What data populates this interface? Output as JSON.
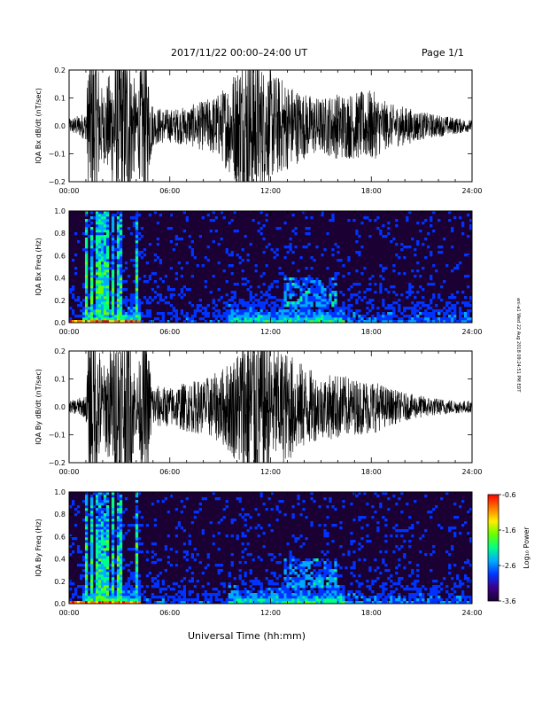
{
  "header": {
    "title": "2017/11/22  00:00–24:00 UT",
    "page": "Page 1/1"
  },
  "footer": {
    "xlabel": "Universal Time (hh:mm)"
  },
  "side_stamp": "ani-a1 Wed 22 Aug 2018 09:24:51 PM EDT",
  "chart_data": [
    {
      "type": "line",
      "ylabel": "IQA Bx dB/dt (nT/sec)",
      "x_ticks": [
        "00:00",
        "06:00",
        "12:00",
        "18:00",
        "24:00"
      ],
      "xlim": [
        0,
        24
      ],
      "ylim": [
        -0.2,
        0.2
      ],
      "y_ticks": [
        "0.2",
        "0.1",
        "0.0",
        "−0.1",
        "−0.2"
      ],
      "y_tick_values": [
        0.2,
        0.1,
        0.0,
        -0.1,
        -0.2
      ],
      "series": [
        {
          "hours": [
            0,
            1,
            1.2,
            1.6,
            2,
            3,
            3.6,
            4,
            4.5,
            5,
            6,
            7,
            8,
            9,
            10,
            10.5,
            11,
            11.5,
            12,
            13,
            14,
            15,
            16,
            17,
            18,
            19,
            20,
            21,
            22,
            23,
            24
          ],
          "amplitude": [
            0.025,
            0.05,
            0.3,
            0.3,
            0.12,
            0.3,
            0.3,
            0.12,
            0.3,
            0.07,
            0.06,
            0.07,
            0.09,
            0.12,
            0.22,
            0.3,
            0.3,
            0.22,
            0.2,
            0.16,
            0.12,
            0.1,
            0.12,
            0.12,
            0.13,
            0.08,
            0.07,
            0.05,
            0.04,
            0.03,
            0.02
          ]
        }
      ],
      "color": "#000000"
    },
    {
      "type": "heatmap",
      "ylabel": "IQA Bx Freq (Hz)",
      "x_ticks": [
        "00:00",
        "06:00",
        "12:00",
        "18:00",
        "24:00"
      ],
      "xlim": [
        0,
        24
      ],
      "ylim": [
        0,
        1.0
      ],
      "y_ticks": [
        "1.0",
        "0.8",
        "0.6",
        "0.4",
        "0.2",
        "0.0"
      ],
      "y_tick_values": [
        1.0,
        0.8,
        0.6,
        0.4,
        0.2,
        0.0
      ],
      "colorbar": {
        "label": "Log₁₀ Power",
        "ticks": [
          "-0.6",
          "-1.6",
          "-2.6",
          "-3.6"
        ],
        "range": [
          -3.6,
          -0.6
        ]
      },
      "colors": [
        "#1a0033",
        "#3a008a",
        "#0033ff",
        "#00aaff",
        "#00ff88",
        "#66ff00",
        "#ffee00",
        "#ff7700",
        "#ff0000"
      ]
    },
    {
      "type": "line",
      "ylabel": "IQA By dB/dt (nT/sec)",
      "x_ticks": [
        "00:00",
        "06:00",
        "12:00",
        "18:00",
        "24:00"
      ],
      "xlim": [
        0,
        24
      ],
      "ylim": [
        -0.2,
        0.2
      ],
      "y_ticks": [
        "0.2",
        "0.1",
        "0.0",
        "−0.1",
        "−0.2"
      ],
      "y_tick_values": [
        0.2,
        0.1,
        0.0,
        -0.1,
        -0.2
      ],
      "series": [
        {
          "hours": [
            0,
            1,
            1.2,
            1.6,
            2,
            3,
            3.6,
            4,
            4.5,
            5,
            6,
            7,
            8,
            9,
            10,
            10.5,
            11,
            11.5,
            12,
            13,
            14,
            15,
            16,
            17,
            18,
            19,
            20,
            21,
            22,
            23,
            24
          ],
          "amplitude": [
            0.02,
            0.04,
            0.3,
            0.3,
            0.14,
            0.3,
            0.3,
            0.1,
            0.3,
            0.08,
            0.07,
            0.09,
            0.1,
            0.13,
            0.2,
            0.3,
            0.3,
            0.3,
            0.22,
            0.2,
            0.15,
            0.11,
            0.12,
            0.1,
            0.1,
            0.07,
            0.05,
            0.04,
            0.03,
            0.025,
            0.02
          ]
        }
      ],
      "color": "#000000"
    },
    {
      "type": "heatmap",
      "ylabel": "IQA By Freq (Hz)",
      "x_ticks": [
        "00:00",
        "06:00",
        "12:00",
        "18:00",
        "24:00"
      ],
      "xlim": [
        0,
        24
      ],
      "ylim": [
        0,
        1.0
      ],
      "y_ticks": [
        "1.0",
        "0.8",
        "0.6",
        "0.4",
        "0.2",
        "0.0"
      ],
      "y_tick_values": [
        1.0,
        0.8,
        0.6,
        0.4,
        0.2,
        0.0
      ],
      "colorbar": {
        "label": "Log₁₀ Power",
        "ticks": [
          "-0.6",
          "-1.6",
          "-2.6",
          "-3.6"
        ],
        "range": [
          -3.6,
          -0.6
        ]
      },
      "colors": [
        "#1a0033",
        "#3a008a",
        "#0033ff",
        "#00aaff",
        "#00ff88",
        "#66ff00",
        "#ffee00",
        "#ff7700",
        "#ff0000"
      ]
    }
  ]
}
